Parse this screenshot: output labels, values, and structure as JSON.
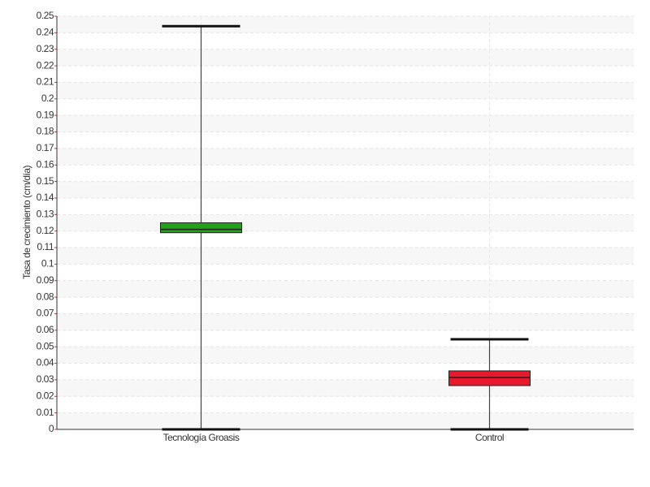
{
  "chart_data": {
    "type": "box",
    "y_label": "Tasa de crecimiento (cm/día)",
    "categories": [
      "Tecnología Groasis",
      "Control"
    ],
    "boxes": [
      {
        "min": 0,
        "q1": 0.119,
        "median": 0.121,
        "q3": 0.125,
        "max": 0.244,
        "color": "#22a01a"
      },
      {
        "min": 0,
        "q1": 0.0265,
        "median": 0.0314,
        "q3": 0.0354,
        "max": 0.0545,
        "color": "#e8192c"
      }
    ],
    "ylim": [
      0,
      0.25
    ],
    "yticks": [
      0,
      0.01,
      0.02,
      0.03,
      0.04,
      0.05,
      0.06,
      0.07,
      0.08,
      0.09,
      0.1,
      0.11,
      0.12,
      0.13,
      0.14,
      0.15,
      0.16,
      0.17,
      0.18,
      0.19,
      0.2,
      0.21,
      0.22,
      0.23,
      0.24,
      0.25
    ],
    "grid": true
  }
}
